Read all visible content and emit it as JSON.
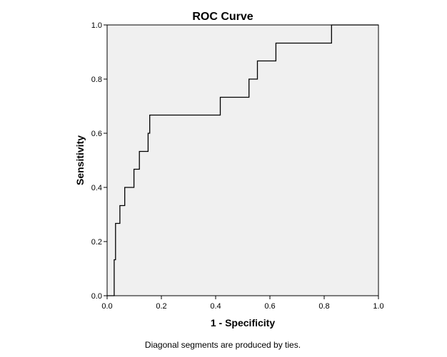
{
  "chart_data": {
    "type": "line",
    "title": "ROC Curve",
    "xlabel": "1 - Specificity",
    "ylabel": "Sensitivity",
    "xlim": [
      0,
      1
    ],
    "ylim": [
      0,
      1
    ],
    "x_ticks": [
      "0.0",
      "0.2",
      "0.4",
      "0.6",
      "0.8",
      "1.0"
    ],
    "y_ticks": [
      "0.0",
      "0.2",
      "0.4",
      "0.6",
      "0.8",
      "1.0"
    ],
    "grid": false,
    "plot_background": "#f0f0f0",
    "line_color": "#000000",
    "footnote": "Diagonal segments are produced by ties.",
    "series": [
      {
        "x": [
          0,
          0.026,
          0.026,
          0.031,
          0.031,
          0.047,
          0.047,
          0.065,
          0.065,
          0.099,
          0.099,
          0.119,
          0.119,
          0.151,
          0.151,
          0.157,
          0.157,
          0.417,
          0.417,
          0.523,
          0.523,
          0.536,
          0.536,
          0.554,
          0.554,
          0.622,
          0.622,
          0.827,
          0.827,
          1.0
        ],
        "y": [
          0,
          0,
          0.133,
          0.133,
          0.267,
          0.267,
          0.333,
          0.333,
          0.4,
          0.4,
          0.467,
          0.467,
          0.533,
          0.533,
          0.6,
          0.6,
          0.667,
          0.667,
          0.733,
          0.733,
          0.8,
          0.8,
          0.8,
          0.8,
          0.867,
          0.867,
          0.933,
          0.933,
          1.0,
          1.0
        ]
      }
    ]
  }
}
